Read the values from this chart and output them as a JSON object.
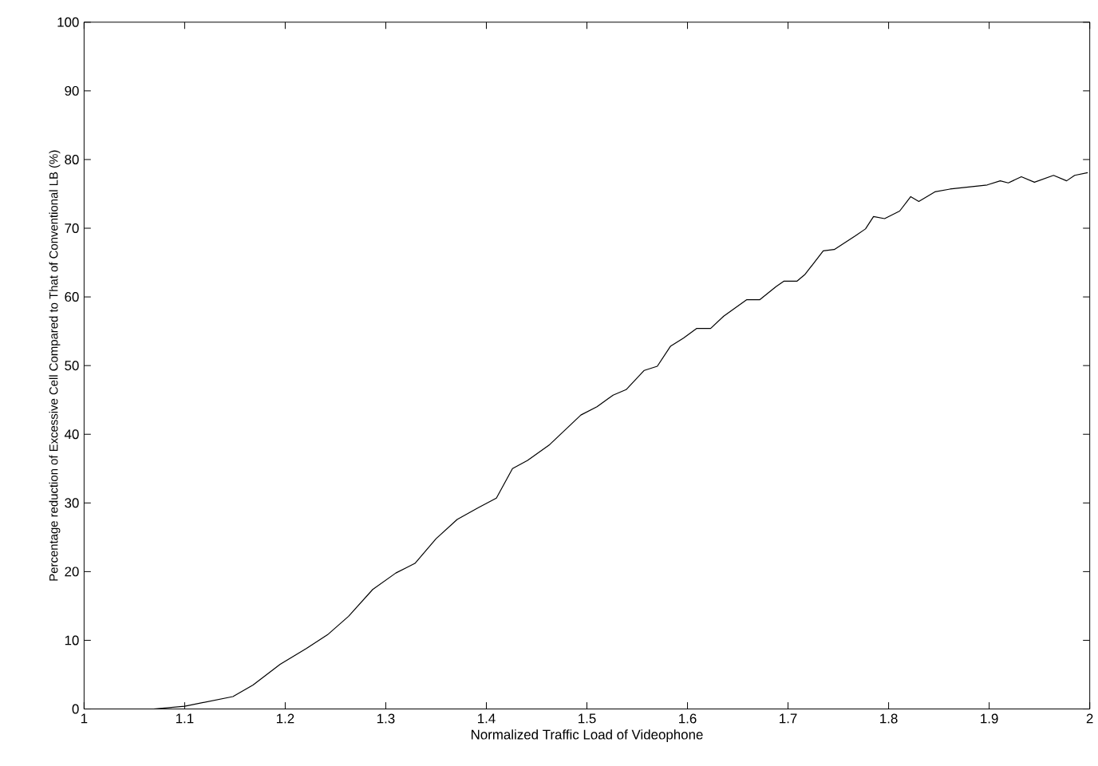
{
  "chart_data": {
    "type": "line",
    "xlabel": "Normalized Traffic Load of Videophone",
    "ylabel": "Percentage reduction of Excessive Cell Compared to That of Conventional LB (%)",
    "xlim": [
      1,
      2
    ],
    "ylim": [
      0,
      100
    ],
    "xticks": [
      1,
      1.1,
      1.2,
      1.3,
      1.4,
      1.5,
      1.6,
      1.7,
      1.8,
      1.9,
      2
    ],
    "yticks": [
      0,
      10,
      20,
      30,
      40,
      50,
      60,
      70,
      80,
      90,
      100
    ],
    "grid": false,
    "marker": "none",
    "line_style": "solid",
    "x": [
      1,
      1.069,
      1.1,
      1.148,
      1.168,
      1.195,
      1.221,
      1.242,
      1.263,
      1.287,
      1.31,
      1.329,
      1.35,
      1.371,
      1.392,
      1.41,
      1.426,
      1.441,
      1.463,
      1.494,
      1.51,
      1.526,
      1.539,
      1.557,
      1.57,
      1.583,
      1.596,
      1.609,
      1.623,
      1.636,
      1.659,
      1.672,
      1.688,
      1.696,
      1.709,
      1.717,
      1.735,
      1.746,
      1.767,
      1.777,
      1.785,
      1.796,
      1.811,
      1.822,
      1.83,
      1.846,
      1.861,
      1.898,
      1.911,
      1.919,
      1.932,
      1.945,
      1.964,
      1.977,
      1.985,
      1.998
    ],
    "series": [
      {
        "color": "#000000",
        "values": [
          0,
          0,
          0.4,
          1.8,
          3.5,
          6.5,
          8.8,
          10.8,
          13.5,
          17.4,
          19.8,
          21.2,
          24.8,
          27.6,
          29.3,
          30.7,
          35.0,
          36.2,
          38.5,
          42.8,
          44.0,
          45.7,
          46.5,
          49.3,
          49.9,
          52.8,
          54.0,
          55.4,
          55.4,
          57.2,
          59.6,
          59.6,
          61.5,
          62.3,
          62.3,
          63.3,
          66.7,
          66.9,
          68.9,
          69.9,
          71.7,
          71.4,
          72.5,
          74.6,
          73.9,
          75.3,
          75.7,
          76.3,
          76.9,
          76.6,
          77.5,
          76.7,
          77.7,
          76.9,
          77.7,
          78.1
        ]
      }
    ]
  }
}
